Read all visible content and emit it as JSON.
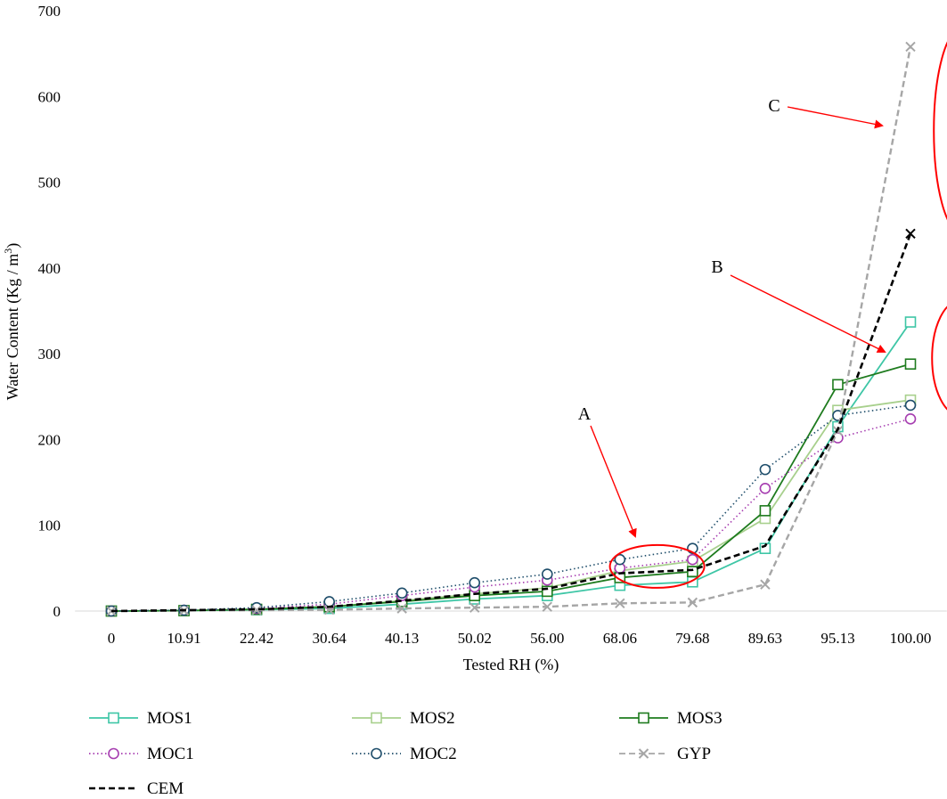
{
  "chart_data": {
    "type": "line",
    "title": "",
    "xlabel": "Tested RH (%)",
    "ylabel_main": "Water Content (Kg / m",
    "ylabel_sup": "3",
    "ylabel_close": ")",
    "ylim": [
      0,
      700
    ],
    "yticks": [
      "0",
      "100",
      "200",
      "300",
      "400",
      "500",
      "600",
      "700"
    ],
    "categories": [
      "0",
      "10.91",
      "22.42",
      "30.64",
      "40.13",
      "50.02",
      "56.00",
      "68.06",
      "79.68",
      "89.63",
      "95.13",
      "100.00"
    ],
    "grid": false,
    "legend_position": "bottom",
    "series": [
      {
        "name": "MOS1",
        "color": "#3ec6a6",
        "dash": "solid",
        "marker": "square",
        "values": [
          0,
          0.5,
          1.5,
          3,
          8,
          14,
          18,
          30,
          34,
          73,
          215,
          337
        ]
      },
      {
        "name": "MOS2",
        "color": "#a8d08d",
        "dash": "solid",
        "marker": "square",
        "values": [
          0,
          0.5,
          2,
          5,
          12,
          20,
          27,
          47,
          58,
          108,
          234,
          246
        ]
      },
      {
        "name": "MOS3",
        "color": "#1e7b1e",
        "dash": "solid",
        "marker": "square",
        "values": [
          0,
          0.5,
          2,
          5,
          11,
          18,
          23,
          39,
          46,
          117,
          264,
          288
        ]
      },
      {
        "name": "MOC1",
        "color": "#a63db0",
        "dash": "dotted",
        "marker": "circle",
        "values": [
          0,
          1,
          3,
          8,
          18,
          28,
          36,
          50,
          60,
          143,
          202,
          224
        ]
      },
      {
        "name": "MOC2",
        "color": "#1f4e6b",
        "dash": "dotted",
        "marker": "circle",
        "values": [
          0,
          1,
          4,
          11,
          21,
          33,
          43,
          60,
          73,
          165,
          228,
          240
        ]
      },
      {
        "name": "GYP",
        "color": "#a6a6a6",
        "dash": "dashed",
        "marker": "x",
        "values": [
          0,
          0.5,
          1,
          1.5,
          3,
          4,
          5,
          9,
          10,
          31,
          210,
          658
        ]
      },
      {
        "name": "CEM",
        "color": "#000000",
        "dash": "dashed",
        "marker": "none",
        "end_marker": "x",
        "values": [
          0,
          1,
          2,
          5,
          12,
          20,
          26,
          44,
          48,
          76,
          212,
          440
        ]
      }
    ],
    "annotations": [
      {
        "label": "A",
        "target_x_index": 7.5,
        "target_y": 52
      },
      {
        "label": "B",
        "target_x_index": 10.5,
        "target_y": 295
      },
      {
        "label": "C",
        "target_x_index": 10.5,
        "target_y": 560
      }
    ]
  }
}
